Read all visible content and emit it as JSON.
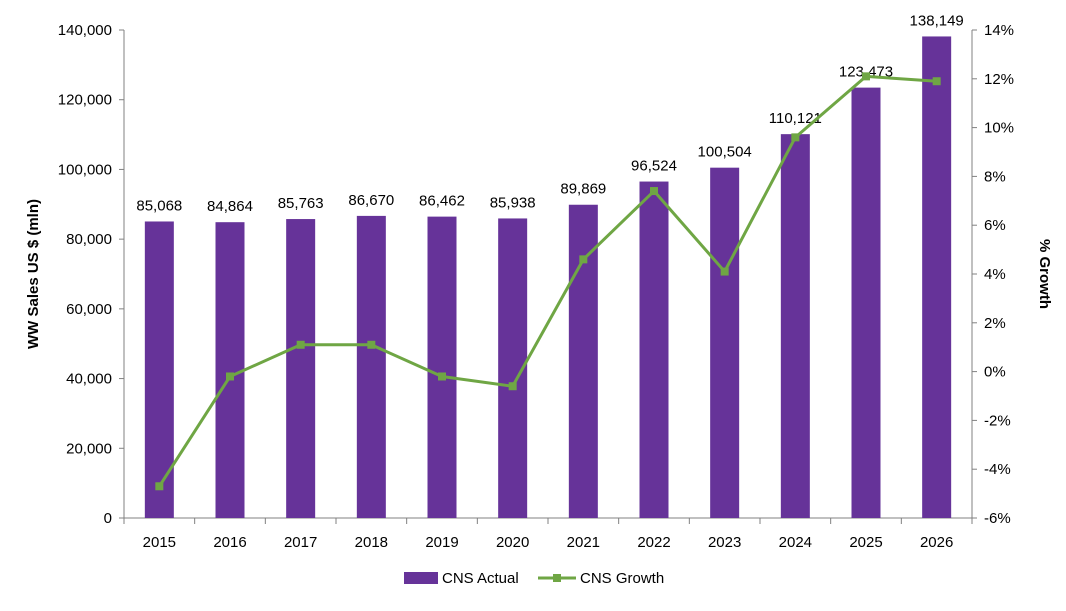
{
  "chart_data": {
    "type": "bar",
    "categories": [
      "2015",
      "2016",
      "2017",
      "2018",
      "2019",
      "2020",
      "2021",
      "2022",
      "2023",
      "2024",
      "2025",
      "2026"
    ],
    "series": [
      {
        "name": "CNS Actual",
        "type": "bar",
        "axis": "left",
        "values": [
          85068,
          84864,
          85763,
          86670,
          86462,
          85938,
          89869,
          96524,
          100504,
          110121,
          123473,
          138149
        ],
        "labels": [
          "85,068",
          "84,864",
          "85,763",
          "86,670",
          "86,462",
          "85,938",
          "89,869",
          "96,524",
          "100,504",
          "110,121",
          "123,473",
          "138,149"
        ]
      },
      {
        "name": "CNS Growth",
        "type": "line",
        "axis": "right",
        "values": [
          -4.7,
          -0.2,
          1.1,
          1.1,
          -0.2,
          -0.6,
          4.6,
          7.4,
          4.1,
          9.6,
          12.1,
          11.9
        ]
      }
    ],
    "title": "",
    "xlabel": "",
    "ylabel": "WW Sales US $ (mln)",
    "y2label": "% Growth",
    "ylim": [
      0,
      140000
    ],
    "y2lim": [
      -6,
      14
    ],
    "yticks": [
      "0",
      "20,000",
      "40,000",
      "60,000",
      "80,000",
      "100,000",
      "120,000",
      "140,000"
    ],
    "y2ticks": [
      "-6%",
      "-4%",
      "-2%",
      "0%",
      "2%",
      "4%",
      "6%",
      "8%",
      "10%",
      "12%",
      "14%"
    ],
    "legend_position": "bottom",
    "grid": false,
    "colors": {
      "bar": "#663399",
      "line": "#6fa644",
      "axis": "#808080"
    }
  }
}
